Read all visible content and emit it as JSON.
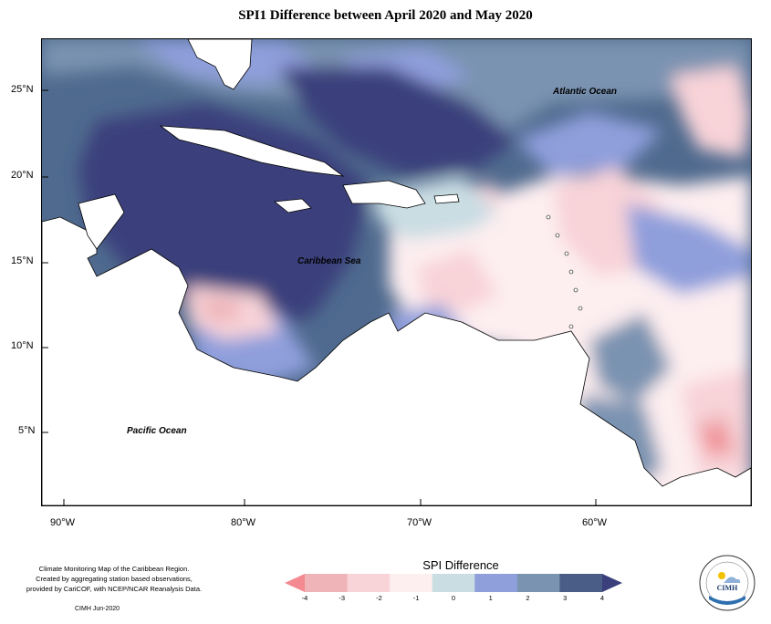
{
  "title": "SPI1 Difference between April 2020 and May 2020",
  "ocean_labels": {
    "atlantic": "Atlantic Ocean",
    "caribbean": "Caribbean Sea",
    "pacific": "Pacific Ocean"
  },
  "axes": {
    "x_ticks": [
      "90°W",
      "80°W",
      "70°W",
      "60°W"
    ],
    "y_ticks": [
      "25°N",
      "20°N",
      "15°N",
      "10°N",
      "5°N"
    ]
  },
  "credit": {
    "line1": "Climate Monitoring Map of the Caribbean Region.",
    "line2": "Created by aggregating station based observations,",
    "line3": "provided by CariCOF, with NCEP/NCAR Reanalysis Data.",
    "stamp": "CIMH  Jun-2020"
  },
  "legend": {
    "title": "SPI Difference",
    "ticks": [
      "-4",
      "-3",
      "-2",
      "-1",
      "0",
      "1",
      "2",
      "3",
      "4"
    ],
    "colors": [
      "#f38a91",
      "#eeb4b8",
      "#f8d3d8",
      "#fdeef0",
      "#c9dde3",
      "#8f9fdc",
      "#7a93b1",
      "#4a5d87",
      "#3b3f7c"
    ]
  },
  "logo": {
    "name": "cimh-logo",
    "text": "CIMH"
  }
}
